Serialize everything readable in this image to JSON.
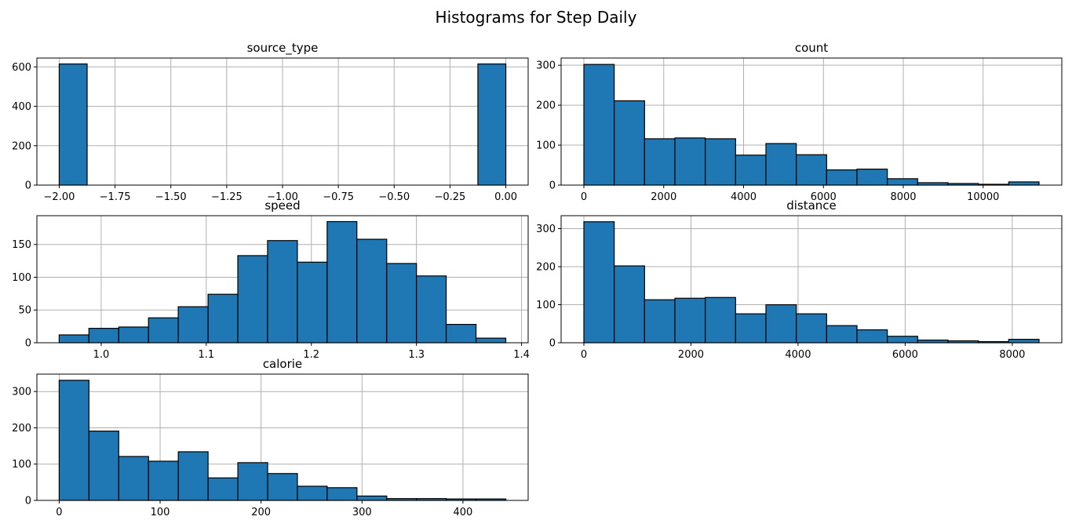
{
  "figure": {
    "title": "Histograms for Step Daily"
  },
  "chart_data": [
    {
      "type": "bar",
      "title": "source_type",
      "xlabel": "",
      "ylabel": "",
      "bin_edges": [
        -2.0,
        -1.875,
        -1.75,
        -1.625,
        -1.5,
        -1.375,
        -1.25,
        -1.125,
        -1.0,
        -0.875,
        -0.75,
        -0.625,
        -0.5,
        -0.375,
        -0.25,
        -0.125,
        0.0
      ],
      "values": [
        615,
        0,
        0,
        0,
        0,
        0,
        0,
        0,
        0,
        0,
        0,
        0,
        0,
        0,
        0,
        615
      ],
      "xlim": [
        -2.1,
        0.1
      ],
      "ylim": [
        0,
        645
      ],
      "xticks": [
        -2.0,
        -1.75,
        -1.5,
        -1.25,
        -1.0,
        -0.75,
        -0.5,
        -0.25,
        0.0
      ],
      "xtick_labels": [
        "−2.00",
        "−1.75",
        "−1.50",
        "−1.25",
        "−1.00",
        "−0.75",
        "−0.50",
        "−0.25",
        "0.00"
      ],
      "yticks": [
        0,
        200,
        400,
        600
      ],
      "ytick_labels": [
        "0",
        "200",
        "400",
        "600"
      ],
      "grid": true
    },
    {
      "type": "bar",
      "title": "count",
      "xlabel": "",
      "ylabel": "",
      "bin_edges": [
        0,
        760,
        1520,
        2280,
        3040,
        3800,
        4560,
        5320,
        6080,
        6840,
        7600,
        8360,
        9120,
        9880,
        10640,
        11400
      ],
      "values": [
        302,
        211,
        116,
        118,
        116,
        75,
        104,
        76,
        38,
        40,
        16,
        6,
        4,
        2,
        8
      ],
      "xlim": [
        -570,
        11970
      ],
      "ylim": [
        0,
        318
      ],
      "xticks": [
        0,
        2000,
        4000,
        6000,
        8000,
        10000
      ],
      "xtick_labels": [
        "0",
        "2000",
        "4000",
        "6000",
        "8000",
        "10000"
      ],
      "yticks": [
        0,
        100,
        200,
        300
      ],
      "ytick_labels": [
        "0",
        "100",
        "200",
        "300"
      ],
      "grid": true
    },
    {
      "type": "bar",
      "title": "speed",
      "xlabel": "",
      "ylabel": "",
      "bin_edges": [
        0.96,
        0.9883,
        1.0167,
        1.045,
        1.0733,
        1.1017,
        1.13,
        1.1583,
        1.1867,
        1.215,
        1.2433,
        1.2717,
        1.3,
        1.3283,
        1.3567,
        1.385
      ],
      "values": [
        12,
        22,
        24,
        38,
        55,
        74,
        133,
        156,
        123,
        185,
        158,
        121,
        102,
        28,
        7
      ],
      "xlim": [
        0.9388,
        1.4063
      ],
      "ylim": [
        0,
        194
      ],
      "xticks": [
        1.0,
        1.1,
        1.2,
        1.3,
        1.4
      ],
      "xtick_labels": [
        "1.0",
        "1.1",
        "1.2",
        "1.3",
        "1.4"
      ],
      "yticks": [
        0,
        50,
        100,
        150
      ],
      "ytick_labels": [
        "0",
        "50",
        "100",
        "150"
      ],
      "grid": true
    },
    {
      "type": "bar",
      "title": "distance",
      "xlabel": "",
      "ylabel": "",
      "bin_edges": [
        0,
        566.7,
        1133.3,
        1700,
        2266.7,
        2833.3,
        3400,
        3966.7,
        4533.3,
        5100,
        5666.7,
        6233.3,
        6800,
        7366.7,
        7933.3,
        8500
      ],
      "values": [
        318,
        202,
        113,
        117,
        119,
        76,
        100,
        76,
        45,
        34,
        17,
        7,
        5,
        3,
        9
      ],
      "xlim": [
        -425,
        8925
      ],
      "ylim": [
        0,
        334
      ],
      "xticks": [
        0,
        2000,
        4000,
        6000,
        8000
      ],
      "xtick_labels": [
        "0",
        "2000",
        "4000",
        "6000",
        "8000"
      ],
      "yticks": [
        0,
        100,
        200,
        300
      ],
      "ytick_labels": [
        "0",
        "100",
        "200",
        "300"
      ],
      "grid": true
    },
    {
      "type": "bar",
      "title": "calorie",
      "xlabel": "",
      "ylabel": "",
      "bin_edges": [
        0,
        29.5,
        59,
        88.5,
        118,
        147.5,
        177,
        206.5,
        236,
        265.5,
        295,
        324.5,
        354,
        383.5,
        413,
        442.5
      ],
      "values": [
        331,
        191,
        121,
        108,
        134,
        62,
        104,
        74,
        39,
        35,
        12,
        5,
        5,
        4,
        4
      ],
      "xlim": [
        -22.1,
        464.6
      ],
      "ylim": [
        0,
        348
      ],
      "xticks": [
        0,
        100,
        200,
        300,
        400
      ],
      "xtick_labels": [
        "0",
        "100",
        "200",
        "300",
        "400"
      ],
      "yticks": [
        0,
        100,
        200,
        300
      ],
      "ytick_labels": [
        "0",
        "100",
        "200",
        "300"
      ],
      "grid": true
    }
  ]
}
